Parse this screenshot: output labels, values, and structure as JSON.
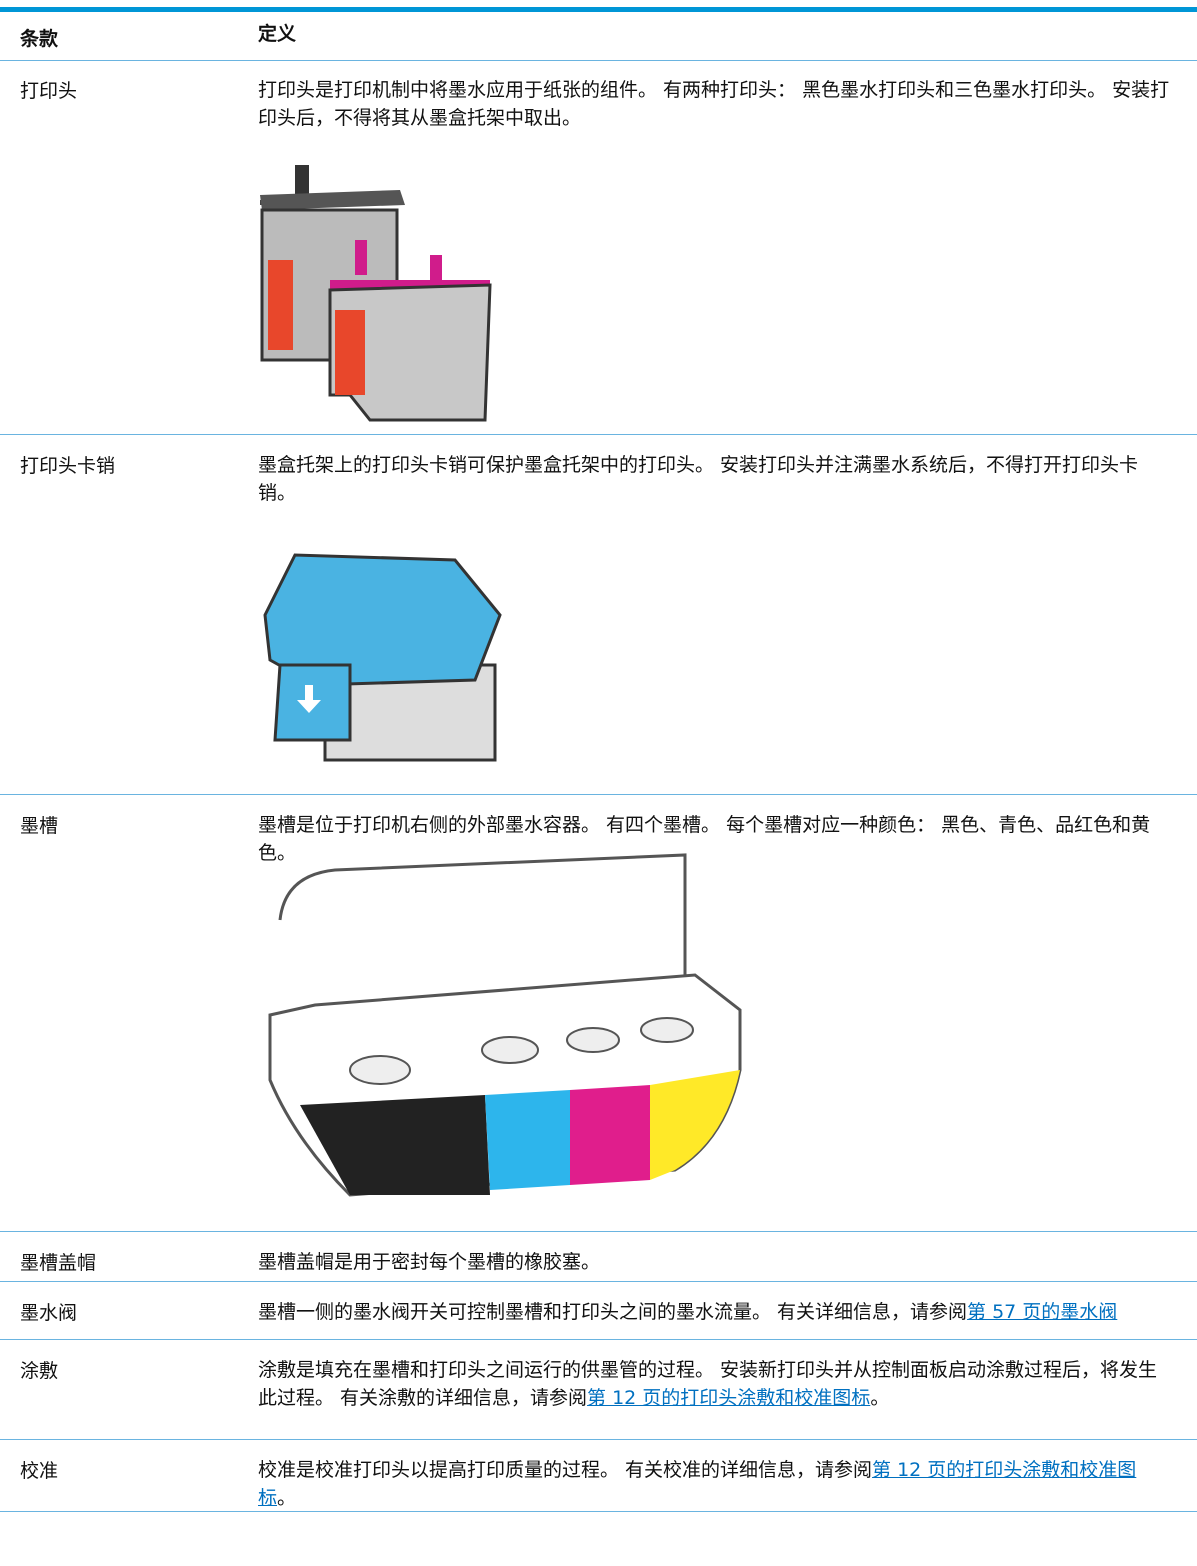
{
  "table": {
    "header": [
      "条款",
      "定义"
    ],
    "rows": [
      {
        "term": "打印头",
        "text": "打印头是打印机制中将墨水应用于纸张的组件。 有两种打印头： 黑色墨水打印头和三色墨水打印头。 安装打印头后，不得将其从墨盒托架中取出。"
      },
      {
        "term": "打印头卡销",
        "text": "墨盒托架上的打印头卡销可保护墨盒托架中的打印头。 安装打印头并注满墨水系统后，不得打开打印头卡销。"
      },
      {
        "term": "墨槽",
        "text": "墨槽是位于打印机右侧的外部墨水容器。 有四个墨槽。 每个墨槽对应一种颜色： 黑色、青色、品红色和黄色。"
      },
      {
        "term": "墨槽盖帽",
        "text": "墨槽盖帽是用于密封每个墨槽的橡胶塞。"
      },
      {
        "term": "墨水阀",
        "text": "墨槽一侧的墨水阀开关可控制墨槽和打印头之间的墨水流量。 有关详细信息，请参阅",
        "link": "第 57 页的墨水阀"
      },
      {
        "term": "涂敷",
        "text": "涂敷是填充在墨槽和打印头之间运行的供墨管的过程。 安装新打印头并从控制面板启动涂敷过程后，将发生此过程。 有关涂敷的详细信息，请参阅",
        "link": "第 12 页的打印头涂敷和校准图标",
        "after": "。"
      },
      {
        "term": "校准",
        "text": "校准是校准打印头以提高打印质量的过程。 有关校准的详细信息，请参阅",
        "link": "第 12 页的打印头涂敷和校准图标",
        "after": "。"
      }
    ]
  }
}
